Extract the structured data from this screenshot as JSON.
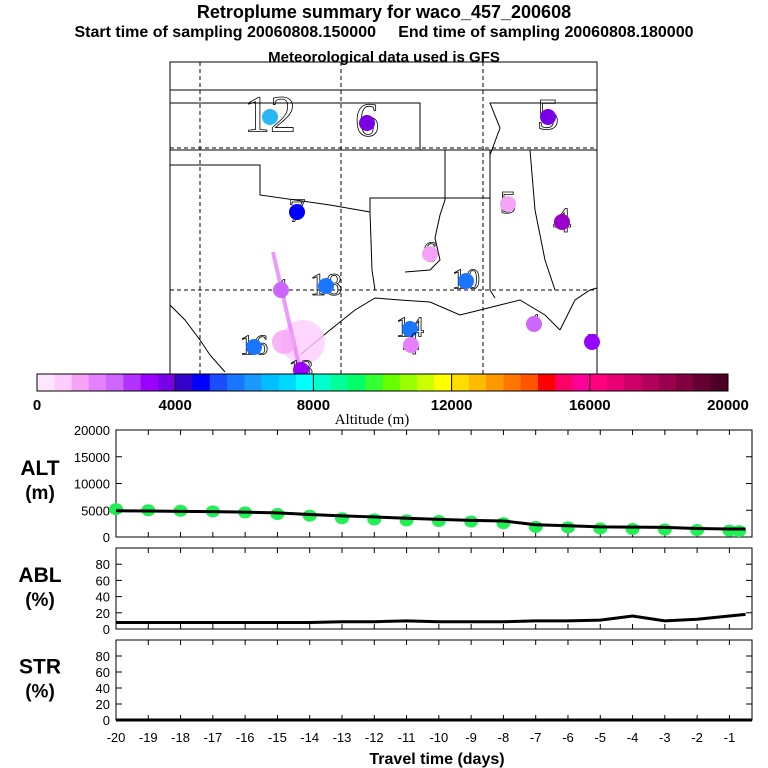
{
  "title": "Retroplume summary for waco_457_200608",
  "subtitle_start": "Start time of sampling 20060808.150000",
  "subtitle_end": "End time of sampling 20060808.180000",
  "met_line": "Meteorological data used is GFS",
  "colorbar": {
    "label": "Altitude (m)",
    "ticks": [
      "0",
      "4000",
      "8000",
      "12000",
      "16000",
      "20000"
    ],
    "colors": [
      "#ffe6ff",
      "#ffccff",
      "#f5a3f5",
      "#e680ff",
      "#cc66ff",
      "#b233ff",
      "#9900ff",
      "#7a00e6",
      "#3300cc",
      "#0000ff",
      "#1a4dff",
      "#1a75ff",
      "#1a99ff",
      "#00bfff",
      "#00d9ff",
      "#00ffff",
      "#00ffcc",
      "#00ff99",
      "#00ff66",
      "#33ff33",
      "#66ff00",
      "#99ff00",
      "#ccff00",
      "#ffff00",
      "#ffdd00",
      "#ffbb00",
      "#ff9900",
      "#ff7700",
      "#ff5500",
      "#ff0000",
      "#ff0066",
      "#ff0099",
      "#ff0080",
      "#e60073",
      "#cc0066",
      "#b3005c",
      "#99004d",
      "#800040",
      "#660033",
      "#4d0026"
    ]
  },
  "map": {
    "numbers": [
      {
        "t": "12",
        "color": "#29b6f6"
      },
      {
        "t": "6",
        "color": "#7a00e6"
      },
      {
        "t": "5",
        "color": "#7a00e6"
      },
      {
        "t": "7",
        "color": "#0000ff"
      },
      {
        "t": "5",
        "color": "#f5a3f5"
      },
      {
        "t": "4",
        "color": "#9900cc"
      },
      {
        "t": "6",
        "color": "#f5a3f5"
      },
      {
        "t": "18",
        "color": "#1a75ff"
      },
      {
        "t": "10",
        "color": "#1a75ff"
      },
      {
        "t": "14",
        "color": "#1a75ff"
      },
      {
        "t": "4",
        "color": "#cc66ff"
      },
      {
        "t": "4",
        "color": "#cc66ff"
      },
      {
        "t": "5",
        "color": "#9900ff"
      },
      {
        "t": "16",
        "color": "#1a75ff"
      },
      {
        "t": "4",
        "color": "#e680ff"
      },
      {
        "t": "13",
        "color": "#9900ff"
      }
    ]
  },
  "chart_data": [
    {
      "type": "scatter",
      "ylabel": "ALT",
      "yunit": "(m)",
      "ylim": [
        0,
        20000
      ],
      "yticks": [
        0,
        5000,
        10000,
        15000,
        20000
      ],
      "xlim": [
        -20,
        -0.3
      ],
      "line_x": [
        -20,
        -19,
        -18,
        -17,
        -16,
        -15,
        -14,
        -13,
        -12,
        -11,
        -10,
        -9,
        -8,
        -7,
        -6,
        -5,
        -4,
        -3,
        -2,
        -1,
        -0.5
      ],
      "line_y": [
        4900,
        4850,
        4800,
        4750,
        4650,
        4500,
        4200,
        3950,
        3750,
        3500,
        3300,
        3100,
        3000,
        2300,
        2100,
        1900,
        1850,
        1800,
        1600,
        1500,
        1500
      ],
      "points_x": [
        -20,
        -19,
        -18,
        -17,
        -16,
        -15,
        -14,
        -13,
        -12,
        -11,
        -10,
        -9,
        -8,
        -7,
        -6,
        -5,
        -4,
        -3,
        -2,
        -1,
        -0.7
      ],
      "points_y": [
        5200,
        5000,
        4900,
        4800,
        4600,
        4300,
        4000,
        3500,
        3300,
        3100,
        3000,
        2900,
        2600,
        1900,
        1800,
        1600,
        1500,
        1400,
        1300,
        1200,
        1100
      ]
    },
    {
      "type": "line",
      "ylabel": "ABL",
      "yunit": "(%)",
      "ylim": [
        0,
        100
      ],
      "yticks": [
        0,
        20,
        40,
        60,
        80
      ],
      "xlim": [
        -20,
        -0.3
      ],
      "x": [
        -20,
        -19,
        -18,
        -17,
        -16,
        -15,
        -14,
        -13,
        -12,
        -11,
        -10,
        -9,
        -8,
        -7,
        -6,
        -5,
        -4,
        -3,
        -2,
        -1,
        -0.5
      ],
      "y": [
        8,
        8,
        8,
        8,
        8,
        8,
        8,
        9,
        9,
        10,
        9,
        9,
        9,
        10,
        10,
        11,
        16,
        10,
        12,
        16,
        18
      ]
    },
    {
      "type": "line",
      "ylabel": "STR",
      "yunit": "(%)",
      "ylim": [
        0,
        100
      ],
      "yticks": [
        0,
        20,
        40,
        60,
        80
      ],
      "xlim": [
        -20,
        -0.3
      ],
      "x": [
        -20,
        -0.3
      ],
      "y": [
        0,
        0
      ],
      "xlabel": "Travel time (days)",
      "xticks": [
        -20,
        -19,
        -18,
        -17,
        -16,
        -15,
        -14,
        -13,
        -12,
        -11,
        -10,
        -9,
        -8,
        -7,
        -6,
        -5,
        -4,
        -3,
        -2,
        -1
      ]
    }
  ]
}
